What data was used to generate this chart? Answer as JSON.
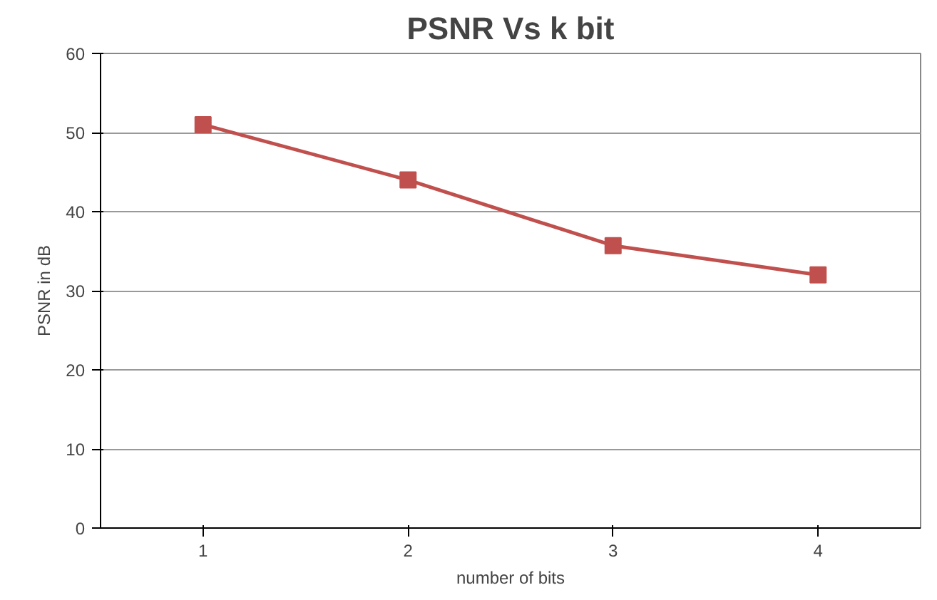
{
  "chart_data": {
    "type": "line",
    "title": "PSNR Vs k bit",
    "xlabel": "number of bits",
    "ylabel": "PSNR in dB",
    "categories": [
      "1",
      "2",
      "3",
      "4"
    ],
    "series": [
      {
        "color": "#c0504d",
        "values": [
          51,
          44,
          35.7,
          32
        ]
      }
    ],
    "ylim": [
      0,
      60
    ],
    "yticks": [
      0,
      10,
      20,
      30,
      40,
      50,
      60
    ],
    "grid": "y",
    "marker": "square",
    "line_style": "solid"
  }
}
